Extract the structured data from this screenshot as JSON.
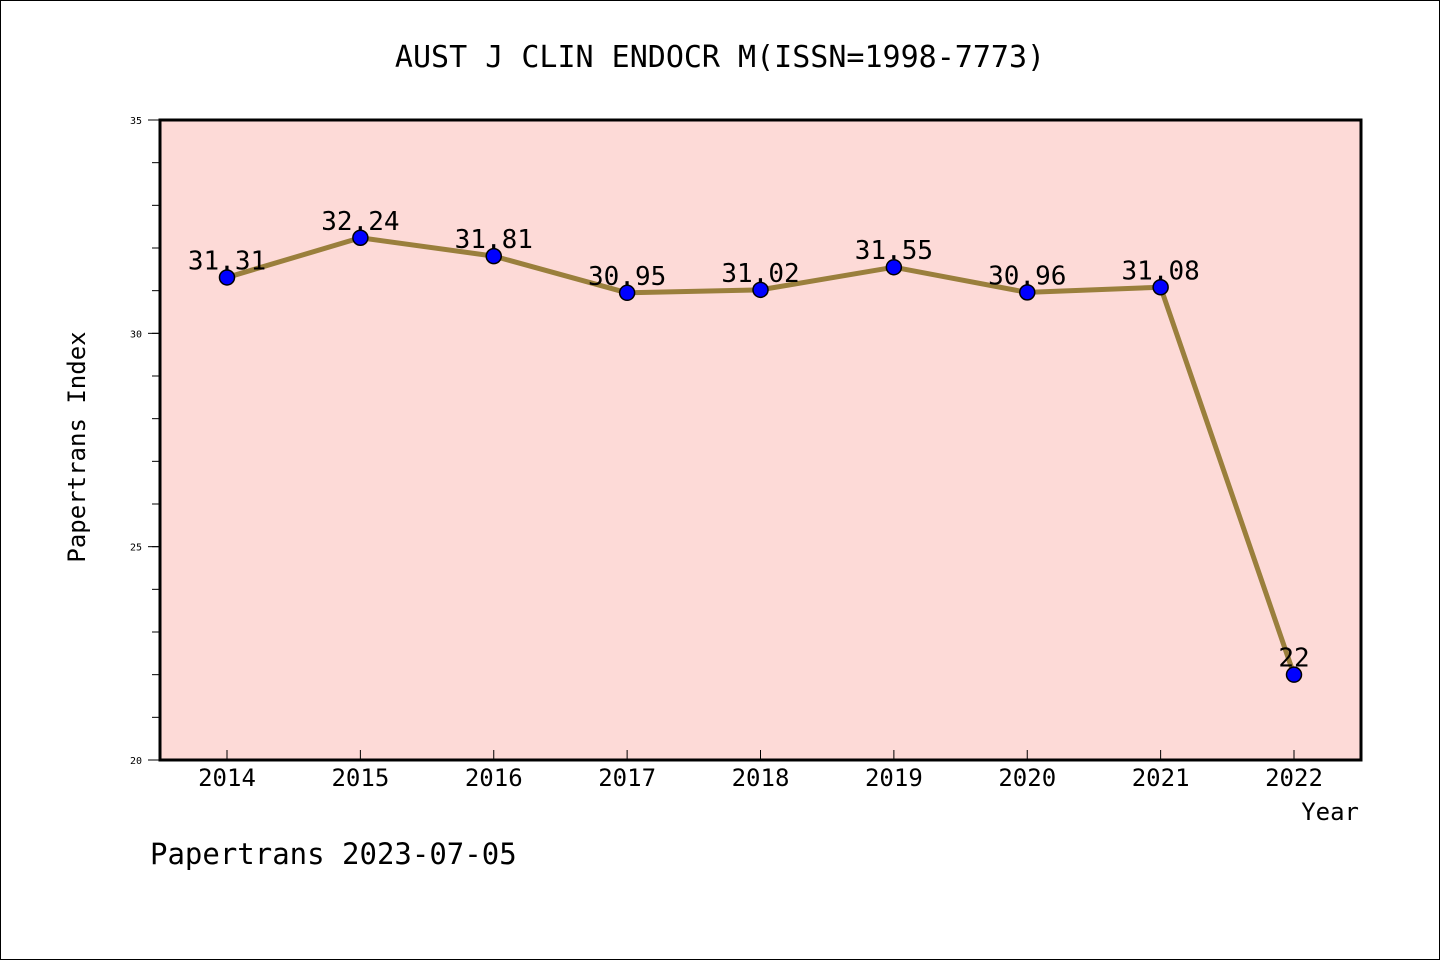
{
  "chart_data": {
    "type": "line",
    "title": "AUST J CLIN ENDOCR M(ISSN=1998-7773)",
    "xlabel": "Year",
    "ylabel": "Papertrans Index",
    "footer": "Papertrans 2023-07-05",
    "categories": [
      "2014",
      "2015",
      "2016",
      "2017",
      "2018",
      "2019",
      "2020",
      "2021",
      "2022"
    ],
    "values": [
      31.31,
      32.24,
      31.81,
      30.95,
      31.02,
      31.55,
      30.96,
      31.08,
      22
    ],
    "data_labels": [
      "31.31",
      "32.24",
      "31.81",
      "30.95",
      "31.02",
      "31.55",
      "30.96",
      "31.08",
      "22"
    ],
    "ylim": [
      20,
      35
    ],
    "yticks": [
      "20",
      "25",
      "30",
      "35"
    ],
    "y_minor_step": 1,
    "grid": false,
    "colors": {
      "plot_background": "#fddad7",
      "line": "#9a7f3c",
      "marker": "#0000ff"
    }
  }
}
